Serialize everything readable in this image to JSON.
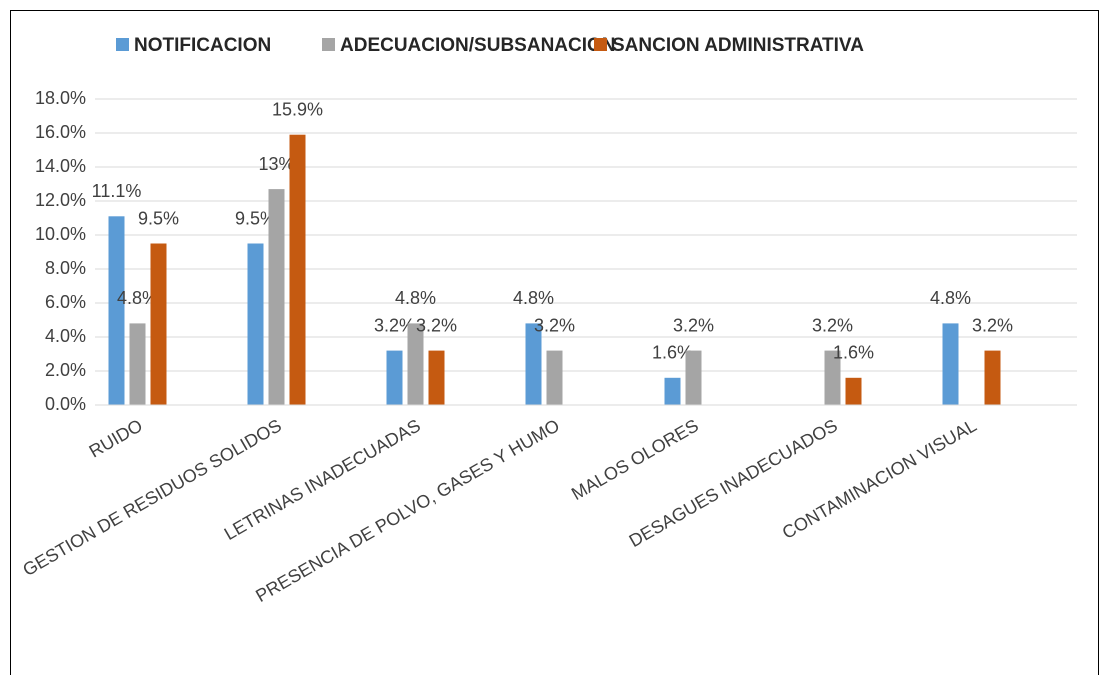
{
  "chart_data": {
    "type": "bar",
    "categories": [
      "RUIDO",
      "GESTION DE RESIDUOS SOLIDOS",
      "LETRINAS INADECUADAS",
      "PRESENCIA DE POLVO, GASES Y HUMO",
      "MALOS OLORES",
      "DESAGUES INADECUADOS",
      "CONTAMINACION VISUAL"
    ],
    "series": [
      {
        "name": "NOTIFICACION",
        "color": "#5b9bd5",
        "values": [
          11.1,
          9.5,
          3.2,
          4.8,
          1.6,
          null,
          4.8
        ],
        "value_labels": [
          "11.1%",
          "9.5%",
          "3.2%",
          "4.8%",
          "1.6%",
          null,
          "4.8%"
        ]
      },
      {
        "name": "ADECUACION/SUBSANACION",
        "color": "#a5a5a5",
        "values": [
          4.8,
          12.7,
          4.8,
          3.2,
          3.2,
          3.2,
          null
        ],
        "value_labels": [
          "4.8%",
          "13%",
          "4.8%",
          "3.2%",
          "3.2%",
          "3.2%",
          null
        ]
      },
      {
        "name": "SANCION ADMINISTRATIVA",
        "color": "#c55a11",
        "values": [
          9.5,
          15.9,
          3.2,
          null,
          null,
          1.6,
          3.2
        ],
        "value_labels": [
          "9.5%",
          "15.9%",
          "3.2%",
          null,
          null,
          "1.6%",
          "3.2%"
        ]
      }
    ],
    "ylim": [
      0,
      18
    ],
    "yticks": [
      {
        "value": 0,
        "label": "0.0%"
      },
      {
        "value": 2,
        "label": "2.0%"
      },
      {
        "value": 4,
        "label": "4.0%"
      },
      {
        "value": 6,
        "label": "6.0%"
      },
      {
        "value": 8,
        "label": "8.0%"
      },
      {
        "value": 10,
        "label": "10.0%"
      },
      {
        "value": 12,
        "label": "12.0%"
      },
      {
        "value": 14,
        "label": "14.0%"
      },
      {
        "value": 16,
        "label": "16.0%"
      },
      {
        "value": 18,
        "label": "18.0%"
      }
    ],
    "grid": true,
    "legend": "top"
  }
}
